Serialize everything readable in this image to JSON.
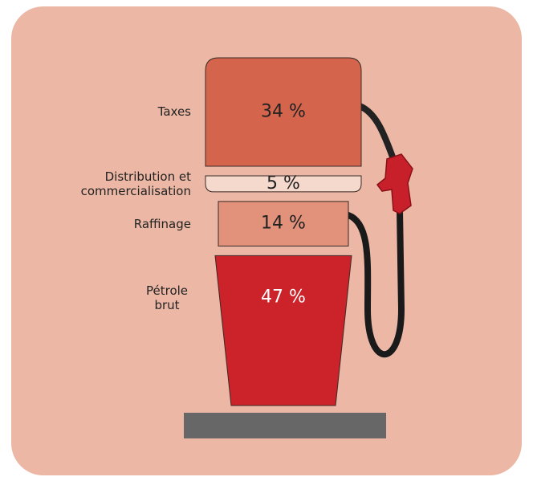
{
  "chart_data": {
    "type": "pump",
    "categories": [
      "Taxes",
      "Distribution et commercialisation",
      "Raffinage",
      "Pétrole brut"
    ],
    "values": [
      34,
      5,
      14,
      47
    ],
    "value_labels": [
      "34 %",
      "5 %",
      "14 %",
      "47 %"
    ],
    "colors": [
      "#d4644c",
      "#f6d9cd",
      "#e2917b",
      "#cc2229"
    ]
  }
}
